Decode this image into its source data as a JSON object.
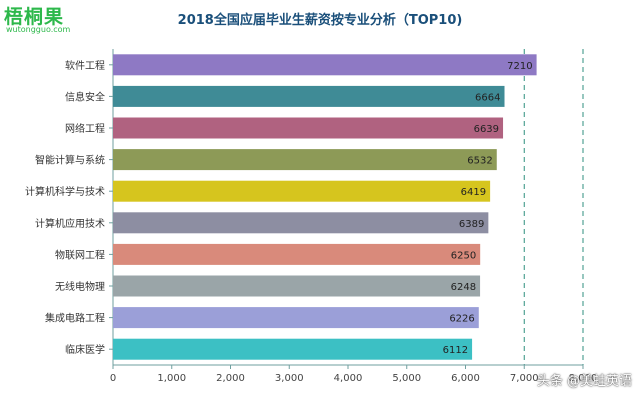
{
  "logo": {
    "name": "梧桐果",
    "site": "wutongguo.com"
  },
  "watermark": "头条 @美蛙英语",
  "chart_data": {
    "type": "bar",
    "orientation": "horizontal",
    "title": "2018全国应届毕业生薪资按专业分析（TOP10)",
    "xlabel": "",
    "ylabel": "",
    "categories": [
      "软件工程",
      "信息安全",
      "网络工程",
      "智能计算与系统",
      "计算机科学与技术",
      "计算机应用技术",
      "物联网工程",
      "无线电物理",
      "集成电路工程",
      "临床医学"
    ],
    "values": [
      7210,
      6664,
      6639,
      6532,
      6419,
      6389,
      6250,
      6248,
      6226,
      6112
    ],
    "colors": [
      "#8e79c4",
      "#3f8b96",
      "#b06280",
      "#8d9a57",
      "#d6c51e",
      "#8d8ea2",
      "#d98a7b",
      "#9aa5a8",
      "#9b9fd8",
      "#3cc0c4"
    ],
    "xlim": [
      0,
      8000
    ],
    "xticks": [
      "0",
      "1,000",
      "2,000",
      "3,000",
      "4,000",
      "5,000",
      "6,000",
      "7,000",
      "8,000"
    ],
    "reference_lines": [
      7000,
      8000
    ],
    "grid": false
  }
}
